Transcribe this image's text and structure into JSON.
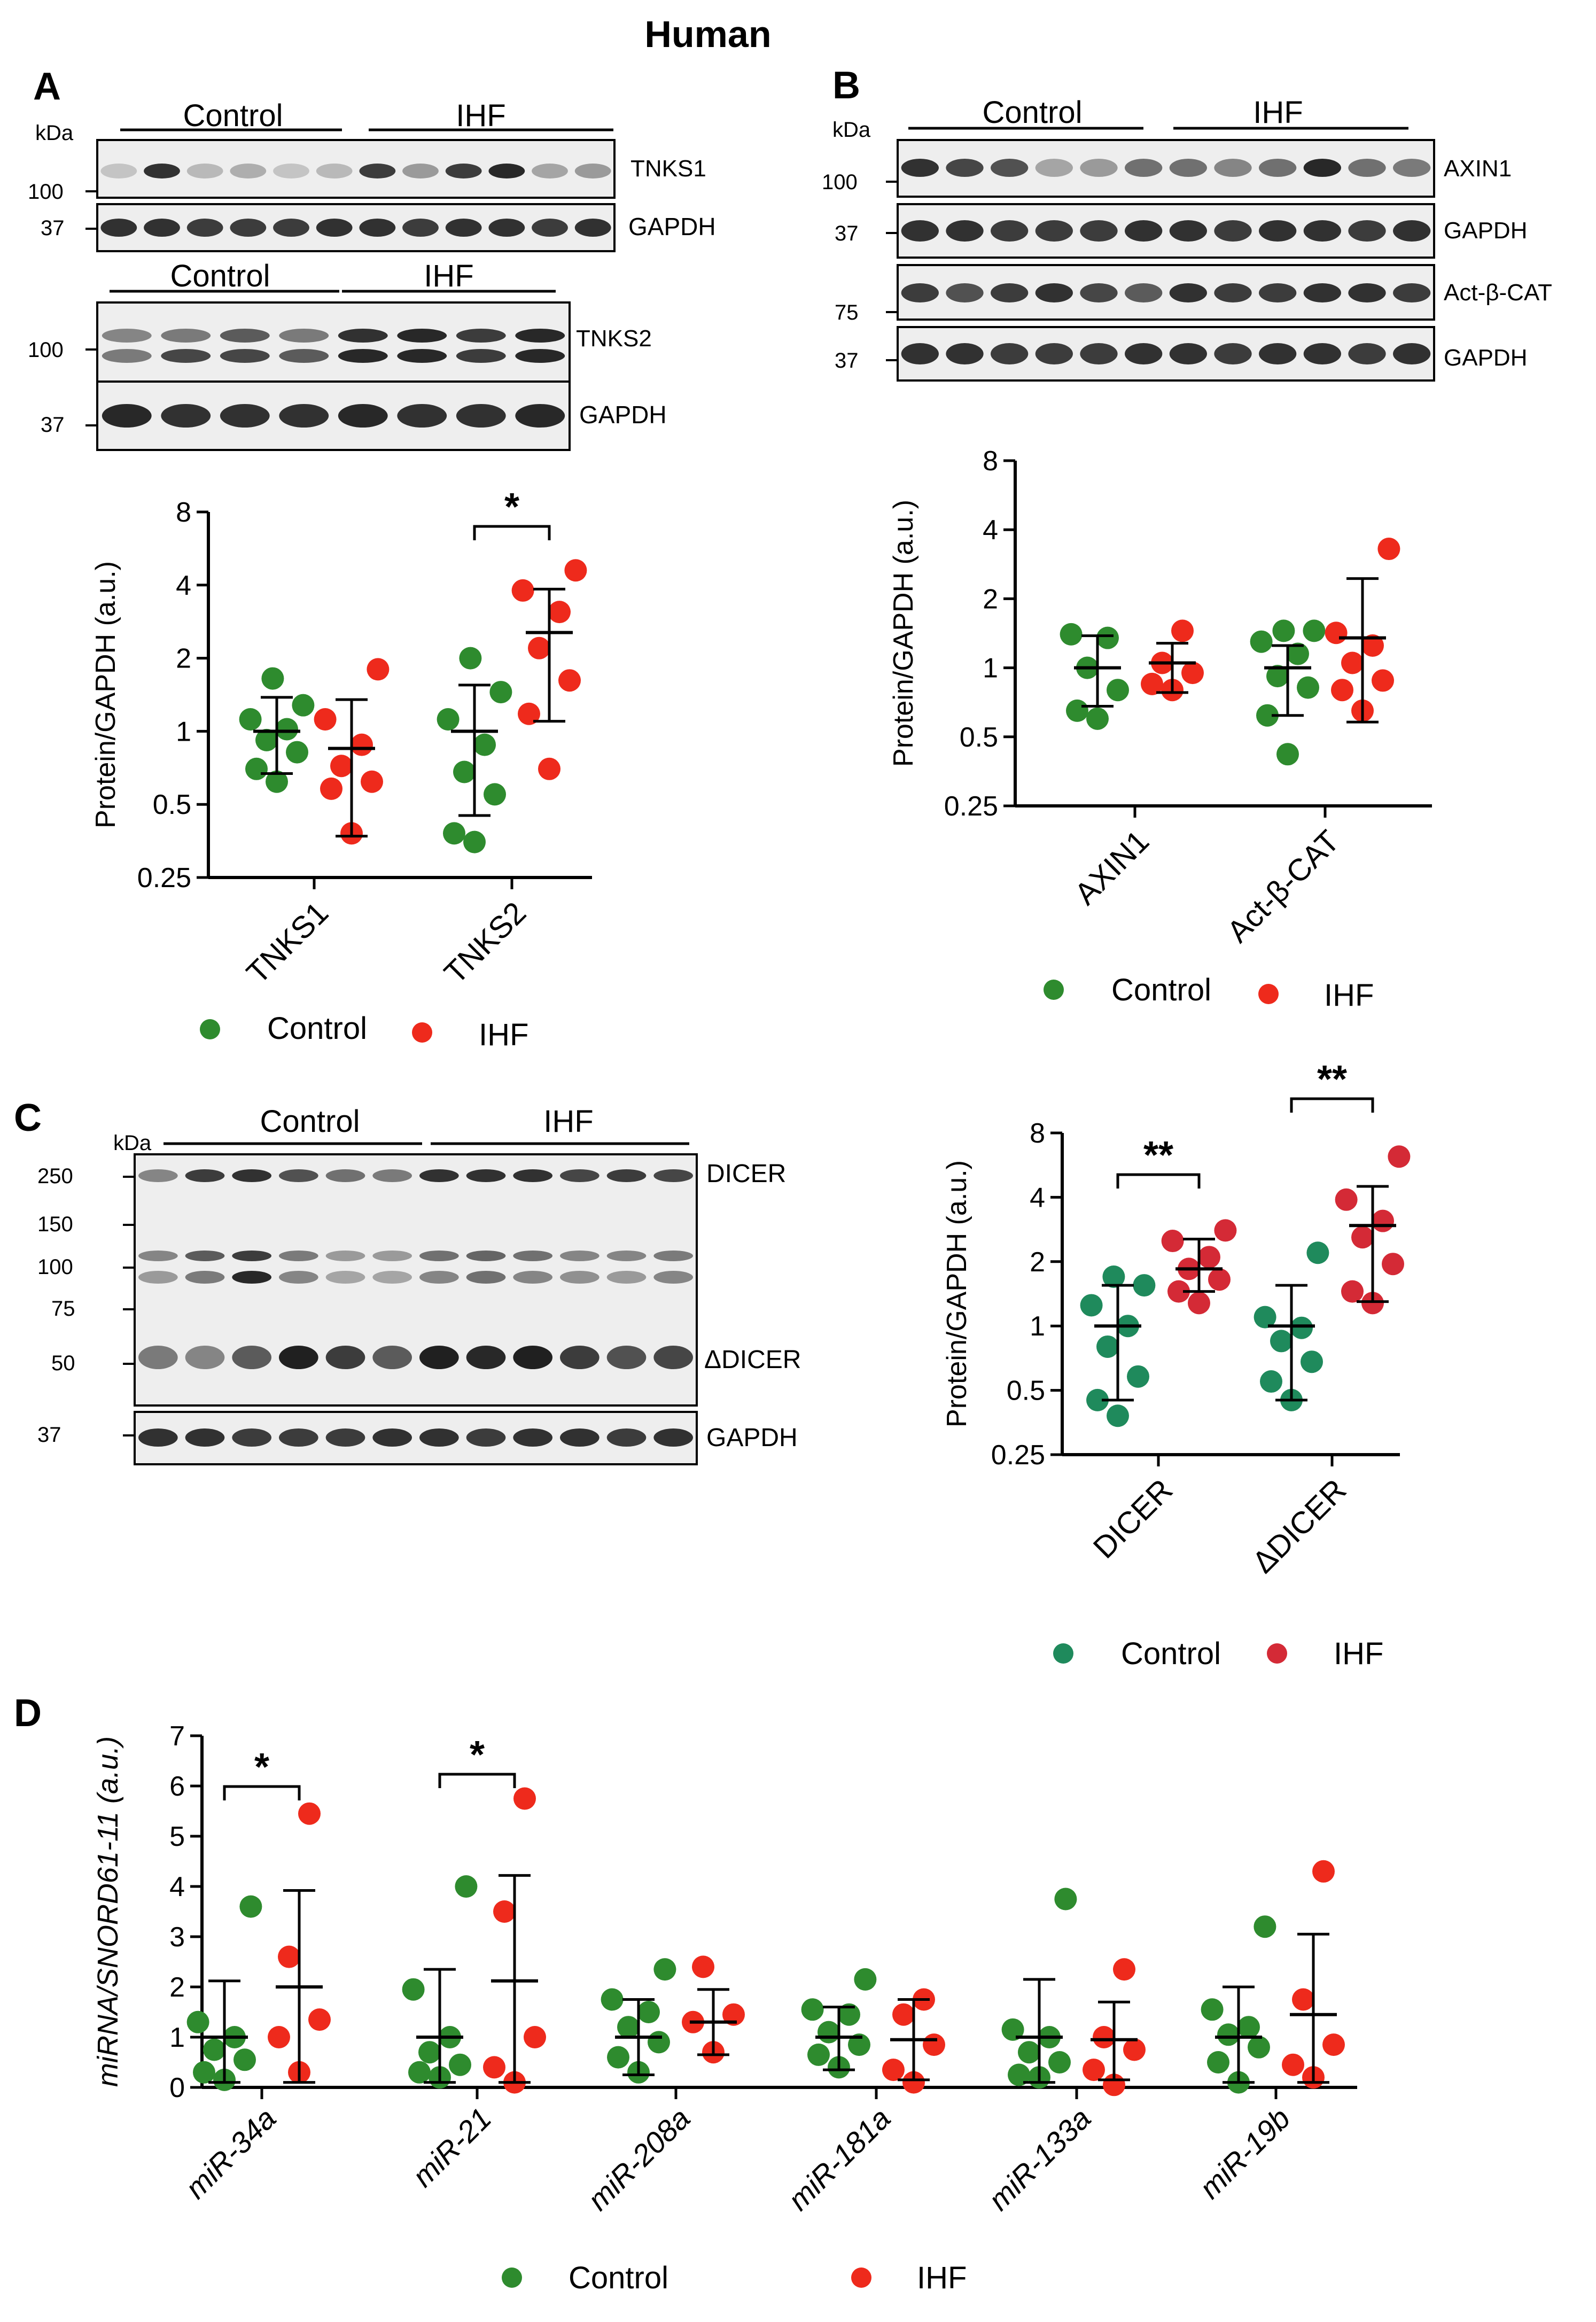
{
  "title": "Human",
  "colors": {
    "control": "#2e8b2e",
    "ihf": "#ee2a1c",
    "control_c": "#1f8a5c",
    "ihf_c": "#d42a36",
    "blot_bg": "#eeeeee",
    "band": "#1c1c1c"
  },
  "panels": {
    "A": {
      "letter": "A",
      "blot1": {
        "kda": "kDa",
        "groups": [
          "Control",
          "IHF"
        ],
        "markers": [
          "100",
          "37"
        ],
        "labels": [
          "TNKS1",
          "GAPDH"
        ]
      },
      "blot2": {
        "groups": [
          "Control",
          "IHF"
        ],
        "markers": [
          "100",
          "37"
        ],
        "labels": [
          "TNKS2",
          "GAPDH"
        ]
      },
      "legend": {
        "control": "Control",
        "ihf": "IHF"
      }
    },
    "B": {
      "letter": "B",
      "blot": {
        "kda": "kDa",
        "groups": [
          "Control",
          "IHF"
        ],
        "markers": [
          "100",
          "37",
          "75",
          "37"
        ],
        "labels": [
          "AXIN1",
          "GAPDH",
          "Act-β-CAT",
          "GAPDH"
        ]
      },
      "legend": {
        "control": "Control",
        "ihf": "IHF"
      }
    },
    "C": {
      "letter": "C",
      "blot": {
        "kda": "kDa",
        "groups": [
          "Control",
          "IHF"
        ],
        "markers": [
          "250",
          "150",
          "100",
          "75",
          "50",
          "37"
        ],
        "labels": [
          "DICER",
          "ΔDICER",
          "GAPDH"
        ]
      },
      "legend": {
        "control": "Control",
        "ihf": "IHF"
      }
    },
    "D": {
      "letter": "D",
      "legend": {
        "control": "Control",
        "ihf": "IHF"
      }
    }
  },
  "chart_data": [
    {
      "panel": "A",
      "type": "scatter",
      "ylabel": "Protein/GAPDH (a.u.)",
      "yscale": "log2",
      "ylim": [
        0.25,
        8
      ],
      "yticks": [
        "0.25",
        "0.5",
        "1",
        "2",
        "4",
        "8"
      ],
      "categories": [
        "TNKS1",
        "TNKS2"
      ],
      "series": [
        {
          "name": "Control",
          "points": [
            [
              0.62,
              0.7,
              0.82,
              0.92,
              1.02,
              1.12,
              1.28,
              1.65
            ],
            [
              0.35,
              0.38,
              0.55,
              0.68,
              0.88,
              1.12,
              1.45,
              2.0
            ]
          ],
          "mean": [
            1.0,
            1.0
          ],
          "sd_low": [
            0.67,
            0.45
          ],
          "sd_high": [
            1.38,
            1.55
          ]
        },
        {
          "name": "IHF",
          "points": [
            [
              0.38,
              0.58,
              0.62,
              0.72,
              0.88,
              1.12,
              1.8
            ],
            [
              0.7,
              1.18,
              1.62,
              2.2,
              3.1,
              3.8,
              4.6
            ]
          ],
          "mean": [
            0.85,
            2.55
          ],
          "sd_low": [
            0.37,
            1.1
          ],
          "sd_high": [
            1.35,
            3.85
          ]
        }
      ],
      "significance": [
        {
          "category": "TNKS2",
          "label": "*"
        }
      ]
    },
    {
      "panel": "B",
      "type": "scatter",
      "ylabel": "Protein/GAPDH (a.u.)",
      "yscale": "log2",
      "ylim": [
        0.25,
        8
      ],
      "yticks": [
        "0.25",
        "0.5",
        "1",
        "2",
        "4",
        "8"
      ],
      "categories": [
        "AXIN1",
        "Act-β-CAT"
      ],
      "series": [
        {
          "name": "Control",
          "points": [
            [
              0.6,
              0.65,
              0.8,
              1.0,
              1.35,
              1.4
            ],
            [
              0.42,
              0.62,
              0.82,
              0.92,
              1.15,
              1.3,
              1.45,
              1.45
            ]
          ],
          "mean": [
            1.0,
            1.0
          ],
          "sd_low": [
            0.68,
            0.62
          ],
          "sd_high": [
            1.38,
            1.25
          ]
        },
        {
          "name": "IHF",
          "points": [
            [
              0.8,
              0.85,
              0.95,
              1.05,
              1.45
            ],
            [
              0.65,
              0.8,
              0.88,
              1.05,
              1.25,
              1.42,
              3.3
            ]
          ],
          "mean": [
            1.05,
            1.35
          ],
          "sd_low": [
            0.78,
            0.58
          ],
          "sd_high": [
            1.28,
            2.45
          ]
        }
      ]
    },
    {
      "panel": "C",
      "type": "scatter",
      "ylabel": "Protein/GAPDH (a.u.)",
      "yscale": "log2",
      "ylim": [
        0.25,
        8
      ],
      "yticks": [
        "0.25",
        "0.5",
        "1",
        "2",
        "4",
        "8"
      ],
      "categories": [
        "DICER",
        "ΔDICER"
      ],
      "series": [
        {
          "name": "Control",
          "points": [
            [
              0.38,
              0.45,
              0.58,
              0.8,
              1.0,
              1.25,
              1.55,
              1.7
            ],
            [
              0.45,
              0.55,
              0.68,
              0.85,
              0.98,
              1.1,
              2.2
            ]
          ],
          "mean": [
            1.0,
            1.0
          ],
          "sd_low": [
            0.45,
            0.45
          ],
          "sd_high": [
            1.55,
            1.55
          ]
        },
        {
          "name": "IHF",
          "points": [
            [
              1.28,
              1.45,
              1.65,
              1.85,
              2.1,
              2.5,
              2.8
            ],
            [
              1.28,
              1.45,
              1.95,
              2.6,
              3.1,
              3.9,
              6.2
            ]
          ],
          "mean": [
            1.85,
            2.95
          ],
          "sd_low": [
            1.45,
            1.3
          ],
          "sd_high": [
            2.55,
            4.5
          ]
        }
      ],
      "significance": [
        {
          "category": "DICER",
          "label": "**"
        },
        {
          "category": "ΔDICER",
          "label": "**"
        }
      ]
    },
    {
      "panel": "D",
      "type": "scatter",
      "ylabel": "miRNA/SNORD61-11 (a.u.)",
      "ylim": [
        0,
        7
      ],
      "yticks": [
        "0",
        "1",
        "2",
        "3",
        "4",
        "5",
        "6",
        "7"
      ],
      "categories": [
        "miR-34a",
        "miR-21",
        "miR-208a",
        "miR-181a",
        "miR-133a",
        "miR-19b"
      ],
      "series": [
        {
          "name": "Control",
          "points": [
            [
              0.15,
              0.3,
              0.55,
              0.75,
              1.0,
              1.3,
              3.6
            ],
            [
              0.2,
              0.3,
              0.45,
              0.7,
              1.0,
              1.95,
              4.0
            ],
            [
              0.3,
              0.6,
              0.9,
              1.2,
              1.5,
              1.75,
              2.35
            ],
            [
              0.4,
              0.65,
              0.85,
              1.1,
              1.45,
              1.55,
              2.15
            ],
            [
              0.2,
              0.25,
              0.5,
              0.7,
              1.0,
              1.15,
              3.75
            ],
            [
              0.1,
              0.5,
              0.8,
              1.05,
              1.2,
              1.55,
              3.2
            ]
          ],
          "mean": [
            1.0,
            1.0,
            1.0,
            1.0,
            1.0,
            1.0
          ],
          "sd_low": [
            0.1,
            0.1,
            0.25,
            0.35,
            0.1,
            0.1
          ],
          "sd_high": [
            2.12,
            2.35,
            1.75,
            1.6,
            2.15,
            2.0
          ]
        },
        {
          "name": "IHF",
          "points": [
            [
              0.3,
              1.0,
              1.35,
              2.6,
              5.45
            ],
            [
              0.1,
              0.4,
              1.0,
              3.5,
              5.75
            ],
            [
              0.7,
              1.3,
              1.45,
              2.4
            ],
            [
              0.1,
              0.35,
              0.85,
              1.45,
              1.75
            ],
            [
              0.05,
              0.35,
              0.75,
              1.0,
              2.35
            ],
            [
              0.2,
              0.45,
              0.85,
              1.75,
              4.3
            ]
          ],
          "mean": [
            2.0,
            2.12,
            1.3,
            0.95,
            0.95,
            1.45
          ],
          "sd_low": [
            0.1,
            0.1,
            0.65,
            0.15,
            0.15,
            0.1
          ],
          "sd_high": [
            3.92,
            4.22,
            1.95,
            1.75,
            1.7,
            3.05
          ]
        }
      ],
      "significance": [
        {
          "category": "miR-34a",
          "label": "*"
        },
        {
          "category": "miR-21",
          "label": "*"
        }
      ]
    }
  ]
}
